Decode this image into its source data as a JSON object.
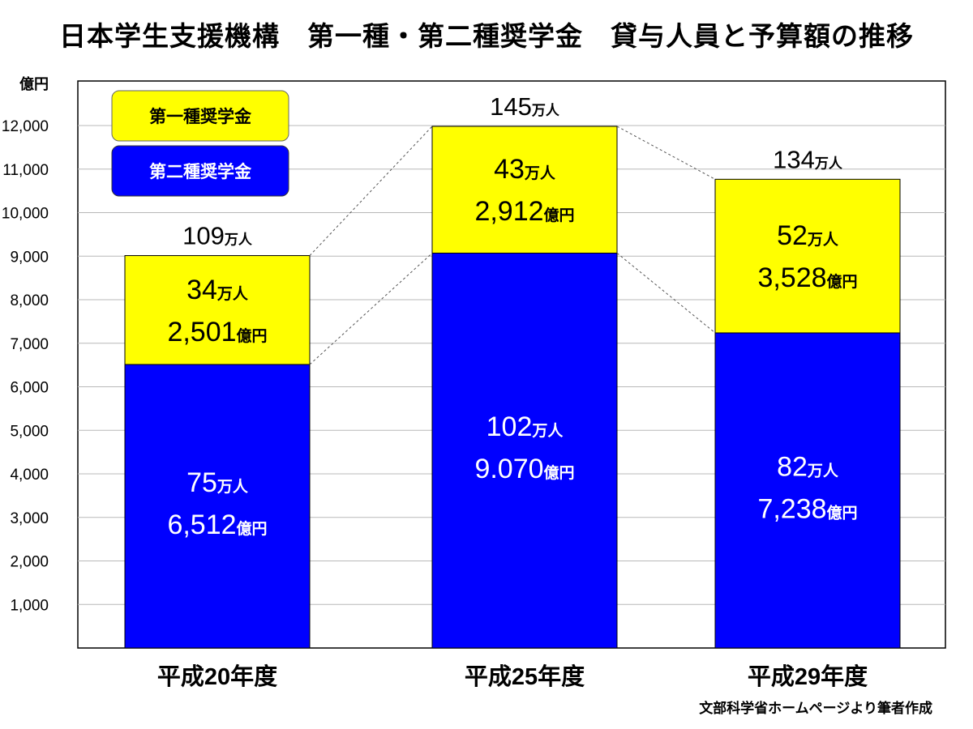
{
  "title": "日本学生支援機構　第一種・第二種奨学金　貸与人員と予算額の推移",
  "source": "文部科学省ホームページより筆者作成",
  "chart_data": {
    "type": "bar",
    "stacked": true,
    "ylabel": "億円",
    "ylim": [
      0,
      12000
    ],
    "yticks": [
      "1,000",
      "2,000",
      "3,000",
      "4,000",
      "5,000",
      "6,000",
      "7,000",
      "8,000",
      "9,000",
      "10,000",
      "11,000",
      "12,000"
    ],
    "grid": true,
    "legend_position": "top-left",
    "categories": [
      "平成20年度",
      "平成25年度",
      "平成29年度"
    ],
    "series": [
      {
        "name": "第二種奨学金",
        "color": "#0000ff",
        "values": [
          6512,
          9070,
          7238
        ],
        "persons": [
          "75万人",
          "102万人",
          "82万人"
        ],
        "amount_labels": [
          "6,512億円",
          "9.070億円",
          "7,238億円"
        ]
      },
      {
        "name": "第一種奨学金",
        "color": "#ffff00",
        "values": [
          2501,
          2912,
          3528
        ],
        "persons": [
          "34万人",
          "43万人",
          "52万人"
        ],
        "amount_labels": [
          "2,501億円",
          "2,912億円",
          "3,528億円"
        ]
      }
    ],
    "totals": [
      "109万人",
      "145万人",
      "134万人"
    ]
  }
}
